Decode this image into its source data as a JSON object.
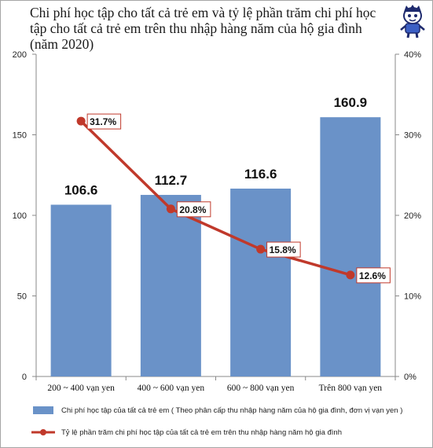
{
  "title": "Chi phí học tập cho tất cả trẻ em và tỷ lệ phần trăm chi phí học tập cho tất cả trẻ em trên thu nhập hàng năm của hộ gia đình (năm 2020)",
  "mascot_icon": "character-mascot-icon",
  "chart_data": {
    "type": "bar",
    "title": "Chi phí học tập cho tất cả trẻ em và tỷ lệ phần trăm chi phí học tập cho tất cả trẻ em trên thu nhập hàng năm của hộ gia đình (năm 2020)",
    "categories": [
      "200 ~ 400 vạn yen",
      "400 ~ 600 vạn yen",
      "600 ~ 800 vạn yen",
      "Trên 800 vạn yen"
    ],
    "series": [
      {
        "name": "Chi phí học tập của tất cả trẻ em ( Theo phân cấp thu nhập hàng năm của hộ gia đình, đơn vị vạn yen )",
        "type": "bar",
        "axis": "left",
        "color": "#6a92c8",
        "values": [
          106.6,
          112.7,
          116.6,
          160.9
        ],
        "labels": [
          "106.6",
          "112.7",
          "116.6",
          "160.9"
        ]
      },
      {
        "name": "Tỷ lệ phần trăm chi phí học tập của tất cả trẻ em trên thu nhập hàng năm hộ gia đình",
        "type": "line",
        "axis": "right",
        "color": "#c0392b",
        "values": [
          31.7,
          20.8,
          15.8,
          12.6
        ],
        "labels": [
          "31.7%",
          "20.8%",
          "15.8%",
          "12.6%"
        ]
      }
    ],
    "ylim": [
      0,
      200
    ],
    "yticks": [
      "0",
      "50",
      "100",
      "150",
      "200"
    ],
    "y2lim": [
      0,
      40
    ],
    "y2ticks": [
      "0%",
      "10%",
      "20%",
      "30%",
      "40%"
    ],
    "grid": false,
    "legend_position": "bottom"
  }
}
